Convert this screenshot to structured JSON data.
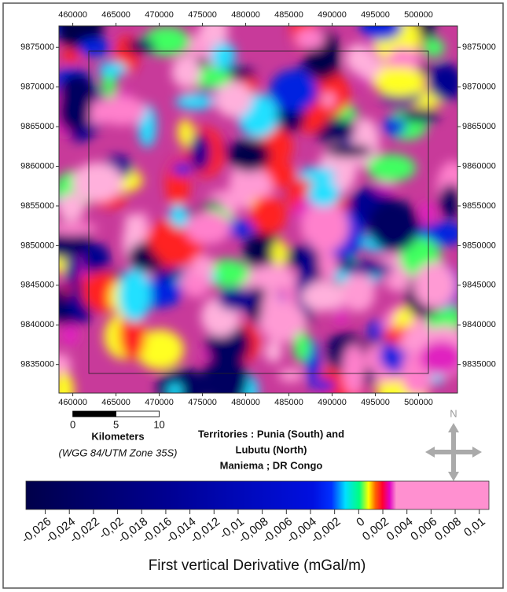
{
  "map": {
    "xlim": [
      458400,
      504500
    ],
    "ylim": [
      9831400,
      9877700
    ],
    "x_ticks": [
      460000,
      465000,
      470000,
      475000,
      480000,
      485000,
      490000,
      495000,
      500000
    ],
    "y_ticks": [
      9875000,
      9870000,
      9865000,
      9860000,
      9855000,
      9850000,
      9845000,
      9840000,
      9835000
    ],
    "scale_bar": {
      "ticks": [
        0,
        5,
        10
      ],
      "unit": "Kilometers"
    },
    "projection": "(WGG 84/UTM Zone 35S)",
    "caption": [
      "Territories : Punia (South) and",
      "Lubutu (North)",
      "Maniema ; DR Congo"
    ],
    "north": "N",
    "colorbar": {
      "range": [
        -0.0276,
        0.0108
      ],
      "ticks": [
        {
          "value": -0.026,
          "label": "-0,026"
        },
        {
          "value": -0.024,
          "label": "-0,024"
        },
        {
          "value": -0.022,
          "label": "-0,022"
        },
        {
          "value": -0.02,
          "label": "-0,02"
        },
        {
          "value": -0.018,
          "label": "-0,018"
        },
        {
          "value": -0.016,
          "label": "-0,016"
        },
        {
          "value": -0.014,
          "label": "-0,014"
        },
        {
          "value": -0.012,
          "label": "-0,012"
        },
        {
          "value": -0.01,
          "label": "-0,01"
        },
        {
          "value": -0.008,
          "label": "-0,008"
        },
        {
          "value": -0.006,
          "label": "-0,006"
        },
        {
          "value": -0.004,
          "label": "-0,004"
        },
        {
          "value": -0.002,
          "label": "-0,002"
        },
        0,
        {
          "value": 0.002,
          "label": "0,002"
        },
        {
          "value": 0.004,
          "label": "0,004"
        },
        {
          "value": 0.006,
          "label": "0,006"
        },
        {
          "value": 0.008,
          "label": "0,008"
        },
        {
          "value": 0.01,
          "label": "0,01"
        }
      ],
      "label": "First vertical Derivative (mGal/m)"
    }
  }
}
